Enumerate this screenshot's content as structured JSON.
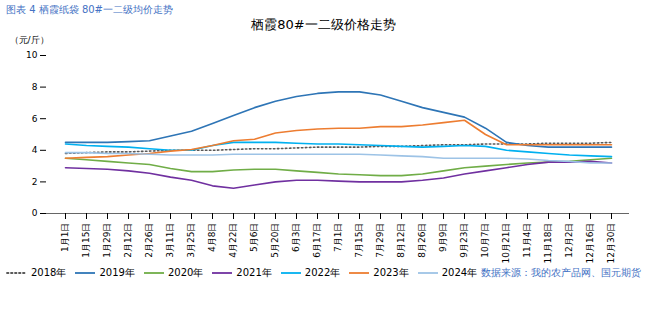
{
  "chart_data": {
    "type": "line",
    "title": "栖霞80#一二级价格走势",
    "ylabel": "（元/斤）",
    "annotations": [
      "图表 4  栖霞纸袋 80#一二级均价走势",
      "数据来源：我的农产品网、国元期货"
    ],
    "categories": [
      "1月1日",
      "1月15日",
      "1月29日",
      "2月12日",
      "2月26日",
      "3月11日",
      "3月25日",
      "4月8日",
      "4月22日",
      "5月6日",
      "5月20日",
      "6月3日",
      "6月17日",
      "7月1日",
      "7月15日",
      "7月29日",
      "8月12日",
      "8月26日",
      "9月9日",
      "9月23日",
      "10月7日",
      "10月21日",
      "11月4日",
      "11月18日",
      "12月2日",
      "12月16日",
      "12月30日"
    ],
    "ylim": [
      0,
      10
    ],
    "yticks": [
      0,
      2,
      4,
      6,
      8,
      10
    ],
    "grid": false,
    "legend": "bottom",
    "series": [
      {
        "name": "2018年",
        "color": "#595959",
        "line_style": "dotted",
        "values": [
          3.8,
          3.85,
          3.9,
          3.9,
          3.95,
          4.0,
          4.0,
          4.0,
          4.05,
          4.1,
          4.1,
          4.15,
          4.2,
          4.2,
          4.2,
          4.25,
          4.25,
          4.3,
          4.35,
          4.35,
          4.4,
          4.4,
          4.4,
          4.45,
          4.45,
          4.45,
          4.5
        ]
      },
      {
        "name": "2019年",
        "color": "#2e75b6",
        "line_style": "solid",
        "values": [
          4.5,
          4.5,
          4.5,
          4.55,
          4.6,
          4.9,
          5.2,
          5.7,
          6.2,
          6.7,
          7.1,
          7.4,
          7.6,
          7.7,
          7.7,
          7.5,
          7.1,
          6.7,
          6.4,
          6.1,
          5.4,
          4.5,
          4.3,
          4.2,
          4.2,
          4.2,
          4.2
        ]
      },
      {
        "name": "2020年",
        "color": "#70ad47",
        "line_style": "solid",
        "values": [
          3.5,
          3.4,
          3.3,
          3.2,
          3.1,
          2.85,
          2.65,
          2.65,
          2.75,
          2.8,
          2.8,
          2.7,
          2.6,
          2.5,
          2.45,
          2.4,
          2.4,
          2.5,
          2.7,
          2.9,
          3.0,
          3.1,
          3.2,
          3.25,
          3.3,
          3.4,
          3.5
        ]
      },
      {
        "name": "2021年",
        "color": "#7030a0",
        "line_style": "solid",
        "values": [
          2.9,
          2.85,
          2.8,
          2.7,
          2.55,
          2.3,
          2.1,
          1.75,
          1.6,
          1.8,
          2.0,
          2.1,
          2.1,
          2.05,
          2.0,
          2.0,
          2.0,
          2.1,
          2.25,
          2.5,
          2.7,
          2.9,
          3.1,
          3.25,
          3.25,
          3.3,
          3.2
        ]
      },
      {
        "name": "2022年",
        "color": "#00b0f0",
        "line_style": "solid",
        "values": [
          4.4,
          4.3,
          4.25,
          4.2,
          4.1,
          4.0,
          4.0,
          4.3,
          4.5,
          4.5,
          4.5,
          4.45,
          4.4,
          4.4,
          4.35,
          4.3,
          4.25,
          4.2,
          4.25,
          4.3,
          4.25,
          4.0,
          3.9,
          3.8,
          3.7,
          3.65,
          3.6
        ]
      },
      {
        "name": "2023年",
        "color": "#ed7d31",
        "line_style": "solid",
        "values": [
          3.5,
          3.55,
          3.6,
          3.7,
          3.8,
          3.95,
          4.05,
          4.3,
          4.6,
          4.7,
          5.1,
          5.25,
          5.35,
          5.4,
          5.4,
          5.5,
          5.5,
          5.6,
          5.75,
          5.9,
          5.0,
          4.35,
          4.35,
          4.35,
          4.35,
          4.35,
          4.35
        ]
      },
      {
        "name": "2024年",
        "color": "#9dc3e6",
        "line_style": "solid",
        "values": [
          3.85,
          3.85,
          3.8,
          3.8,
          3.75,
          3.7,
          3.7,
          3.7,
          3.75,
          3.75,
          3.75,
          3.75,
          3.75,
          3.75,
          3.75,
          3.7,
          3.65,
          3.6,
          3.5,
          3.5,
          3.5,
          3.5,
          3.45,
          3.35,
          3.3,
          3.2,
          3.2
        ]
      }
    ]
  }
}
